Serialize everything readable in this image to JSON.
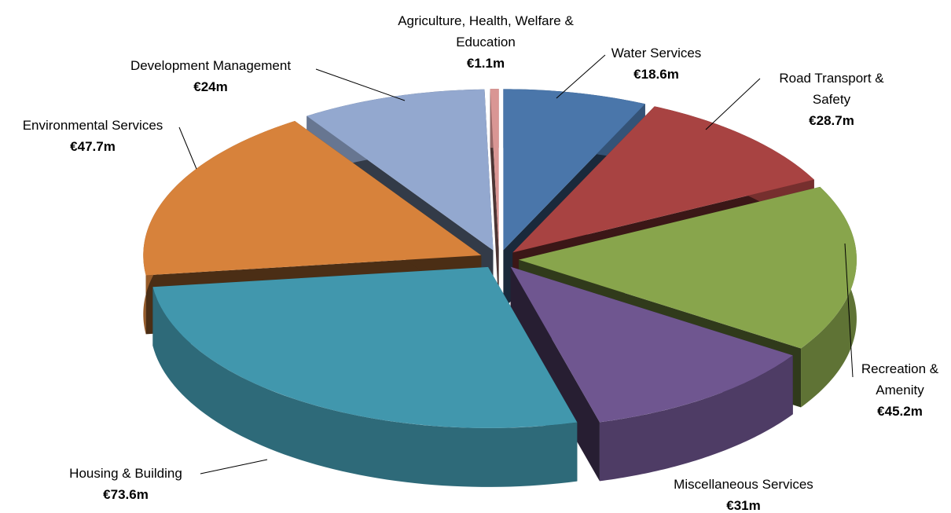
{
  "chart_data": {
    "type": "pie3d",
    "categories": [
      "Water Services",
      "Road Transport & Safety",
      "Recreation & Amenity",
      "Miscellaneous Services",
      "Housing & Building",
      "Environmental Services",
      "Development Management",
      "Agriculture, Health, Welfare & Education"
    ],
    "values": [
      18.6,
      28.7,
      45.2,
      31,
      73.6,
      47.7,
      24,
      1.1
    ],
    "value_labels": [
      "€18.6m",
      "€28.7m",
      "€45.2m",
      "€31m",
      "€73.6m",
      "€47.7m",
      "€24m",
      "€1.1m"
    ],
    "colors": [
      "#4a76aa",
      "#a84342",
      "#88a54c",
      "#6f5690",
      "#4197ad",
      "#d7823b",
      "#93a8cf",
      "#d99694"
    ]
  }
}
